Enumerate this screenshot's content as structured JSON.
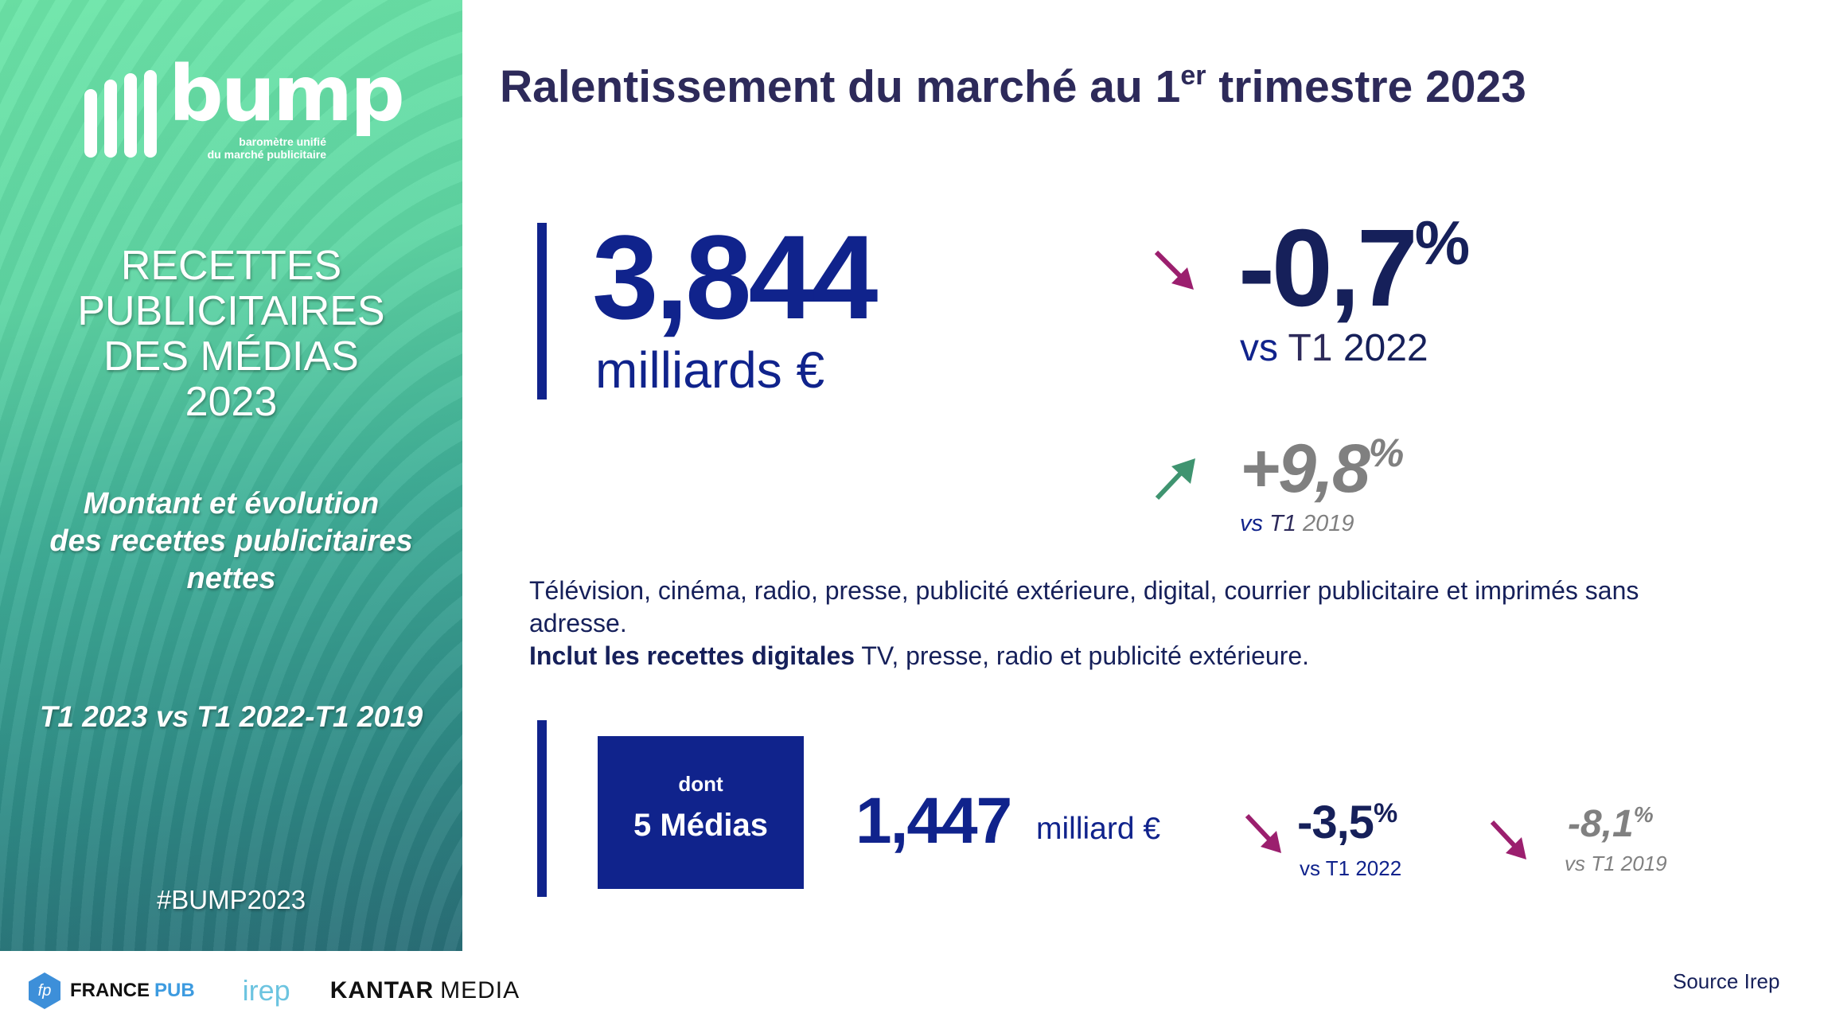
{
  "sidebar": {
    "logo": {
      "word": "bump",
      "tagline_1": "baromètre unifié",
      "tagline_2": "du marché publicitaire"
    },
    "heading_lines": [
      "RECETTES",
      "PUBLICITAIRES",
      "DES MÉDIAS",
      "2023"
    ],
    "subtitle_lines": [
      "Montant et évolution",
      "des recettes publicitaires",
      "nettes"
    ],
    "period": "T1 2023 vs T1 2022-T1 2019",
    "hashtag": "#BUMP2023"
  },
  "title": {
    "main": "Ralentissement du marché au 1",
    "sup": "er",
    "rest": " trimestre 2023"
  },
  "total": {
    "value": "3,844",
    "unit": "milliards €",
    "change_2022": {
      "value": "-0,7",
      "pct": "%",
      "label_vs": "vs",
      "label_t": "T1",
      "label_year": "2022"
    },
    "change_2019": {
      "value": "+9,8",
      "pct": "%",
      "label_vs": "vs",
      "label_t": "T1",
      "label_year": "2019"
    }
  },
  "description": {
    "line1": "Télévision, cinéma, radio, presse, publicité extérieure, digital, courrier publicitaire et imprimés sans adresse.",
    "bold": "Inclut les recettes digitales",
    "rest": " TV, presse, radio et publicité extérieure."
  },
  "five_media": {
    "box_small": "dont",
    "box_big": "5 Médias",
    "value": "1,447",
    "unit": "milliard €",
    "change_2022": {
      "value": "-3,5",
      "pct": "%",
      "label": "vs T1 2022"
    },
    "change_2019": {
      "value": "-8,1",
      "pct": "%",
      "label": "vs T1 2019"
    }
  },
  "footer": {
    "logos": [
      "FRANCE",
      "PUB",
      "irep",
      "KANTAR",
      "MEDIA"
    ],
    "fp": "fp",
    "source": "Source Irep"
  },
  "colors": {
    "navy": "#10238c",
    "dark": "#16205a",
    "down": "#9b1f6e",
    "up": "#3f9470",
    "gray": "#808080"
  }
}
